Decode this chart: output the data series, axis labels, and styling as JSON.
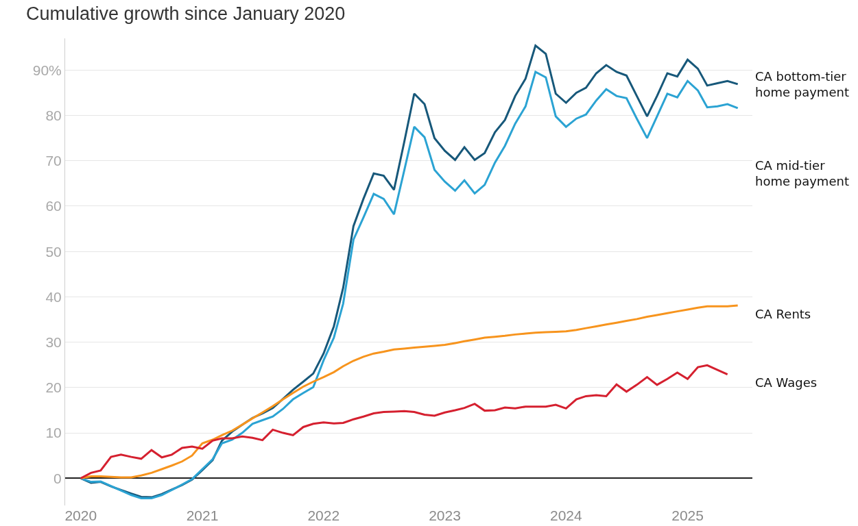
{
  "chart_data": {
    "type": "line",
    "title": "Cumulative growth since January 2020",
    "x": [
      "2020-01",
      "2020-02",
      "2020-03",
      "2020-04",
      "2020-05",
      "2020-06",
      "2020-07",
      "2020-08",
      "2020-09",
      "2020-10",
      "2020-11",
      "2020-12",
      "2021-01",
      "2021-02",
      "2021-03",
      "2021-04",
      "2021-05",
      "2021-06",
      "2021-07",
      "2021-08",
      "2021-09",
      "2021-10",
      "2021-11",
      "2021-12",
      "2022-01",
      "2022-02",
      "2022-03",
      "2022-04",
      "2022-05",
      "2022-06",
      "2022-07",
      "2022-08",
      "2022-09",
      "2022-10",
      "2022-11",
      "2022-12",
      "2023-01",
      "2023-02",
      "2023-03",
      "2023-04",
      "2023-05",
      "2023-06",
      "2023-07",
      "2023-08",
      "2023-09",
      "2023-10",
      "2023-11",
      "2023-12",
      "2024-01",
      "2024-02",
      "2024-03",
      "2024-04",
      "2024-05",
      "2024-06",
      "2024-07",
      "2024-08",
      "2024-09",
      "2024-10",
      "2024-11",
      "2024-12",
      "2025-01",
      "2025-02",
      "2025-03",
      "2025-04",
      "2025-05",
      "2025-06"
    ],
    "series": [
      {
        "name": "CA bottom-tier home payment",
        "color": "#17587a",
        "values": [
          0,
          -1.0,
          -0.8,
          -1.8,
          -2.6,
          -3.4,
          -4.1,
          -4.2,
          -3.5,
          -2.5,
          -1.5,
          -0.3,
          1.8,
          4.0,
          8.3,
          10.3,
          11.8,
          13.3,
          14.3,
          15.5,
          17.5,
          19.5,
          21.3,
          23.1,
          27.5,
          33.5,
          42.0,
          55.6,
          61.6,
          67.2,
          66.7,
          63.6,
          74.2,
          84.8,
          82.5,
          75.0,
          72.2,
          70.2,
          73.0,
          70.2,
          71.7,
          76.3,
          79.0,
          84.3,
          88.1,
          95.4,
          93.6,
          84.8,
          82.8,
          85.0,
          86.1,
          89.3,
          91.1,
          89.6,
          88.8,
          84.3,
          79.8,
          84.3,
          89.3,
          88.6,
          92.3,
          90.3,
          86.6,
          87.1,
          87.6,
          86.9
        ]
      },
      {
        "name": "CA mid-tier home payment",
        "color": "#2ba3d3",
        "values": [
          0,
          -0.8,
          -0.7,
          -1.7,
          -2.7,
          -3.7,
          -4.4,
          -4.4,
          -3.7,
          -2.6,
          -1.4,
          -0.2,
          2.0,
          4.2,
          7.7,
          8.5,
          10.0,
          12.0,
          12.8,
          13.6,
          15.3,
          17.4,
          18.8,
          20.1,
          26.0,
          31.0,
          38.5,
          52.6,
          57.5,
          62.7,
          61.6,
          58.2,
          67.9,
          77.5,
          75.2,
          68.0,
          65.4,
          63.4,
          65.7,
          62.8,
          64.7,
          69.6,
          73.3,
          78.2,
          82.0,
          89.6,
          88.4,
          79.8,
          77.5,
          79.3,
          80.2,
          83.3,
          85.8,
          84.3,
          83.8,
          79.3,
          75.0,
          79.8,
          84.8,
          84.0,
          87.6,
          85.5,
          81.8,
          82.0,
          82.5,
          81.6
        ]
      },
      {
        "name": "CA Rents",
        "color": "#f7941d",
        "values": [
          0,
          0.4,
          0.4,
          0.3,
          0.2,
          0.2,
          0.6,
          1.2,
          2.0,
          2.8,
          3.7,
          5.0,
          7.7,
          8.5,
          9.5,
          10.5,
          11.8,
          13.2,
          14.5,
          15.9,
          17.4,
          18.8,
          20.2,
          21.3,
          22.3,
          23.4,
          24.7,
          25.9,
          26.8,
          27.5,
          27.9,
          28.4,
          28.6,
          28.8,
          29.0,
          29.2,
          29.4,
          29.8,
          30.2,
          30.6,
          31.0,
          31.2,
          31.4,
          31.7,
          31.9,
          32.1,
          32.2,
          32.3,
          32.4,
          32.7,
          33.1,
          33.5,
          33.9,
          34.3,
          34.7,
          35.1,
          35.6,
          36.0,
          36.4,
          36.8,
          37.2,
          37.6,
          37.9,
          37.9,
          37.9,
          38.1
        ]
      },
      {
        "name": "CA Wages",
        "color": "#d5202f",
        "values": [
          0,
          1.2,
          1.7,
          4.7,
          5.2,
          4.7,
          4.3,
          6.2,
          4.6,
          5.2,
          6.7,
          7.0,
          6.5,
          8.3,
          8.8,
          8.8,
          9.2,
          8.9,
          8.4,
          10.7,
          10.0,
          9.5,
          11.3,
          12.0,
          12.3,
          12.1,
          12.2,
          13.0,
          13.6,
          14.3,
          14.6,
          14.7,
          14.8,
          14.6,
          14.0,
          13.8,
          14.5,
          15.0,
          15.5,
          16.4,
          14.9,
          15.0,
          15.6,
          15.4,
          15.8,
          15.8,
          15.8,
          16.2,
          15.4,
          17.4,
          18.1,
          18.3,
          18.1,
          20.7,
          19.1,
          20.6,
          22.3,
          20.6,
          21.9,
          23.3,
          21.9,
          24.5,
          24.9,
          23.9,
          22.9,
          null
        ]
      }
    ],
    "xlim": [
      "2019-11-15",
      "2025-07-15"
    ],
    "xticks": [
      "2020",
      "2021",
      "2022",
      "2023",
      "2024",
      "2025"
    ],
    "ylim": [
      -6,
      97
    ],
    "yticks": [
      0,
      10,
      20,
      30,
      40,
      50,
      60,
      70,
      80,
      {
        "value": 90,
        "label": "90%"
      }
    ],
    "grid": "y",
    "legend": false
  }
}
